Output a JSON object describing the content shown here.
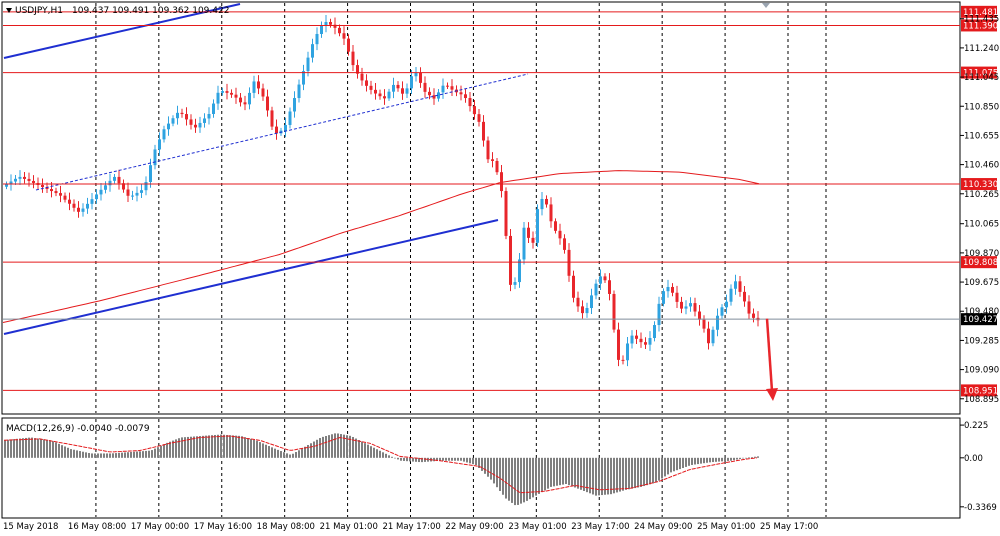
{
  "header": {
    "symbol": "USDJPY,H1",
    "quote": "109.437 109.491 109.362 109.422",
    "macd_label": "MACD(12,26,9) -0.0040 -0.0079"
  },
  "colors": {
    "bull": "#2fa3e0",
    "bear": "#e8262b",
    "level_line": "#e41a1c",
    "trend_line": "#1f2fd1",
    "ma_line": "#e41a1c",
    "current_price_line": "#7f8c9a",
    "macd_hist": "#7f7f7f",
    "macd_signal": "#e41a1c"
  },
  "chart_data": {
    "type": "candlestick",
    "title": "USDJPY,H1",
    "price_range": [
      108.82,
      111.52
    ],
    "price_ticks": [
      "111.435",
      "111.240",
      "111.045",
      "110.850",
      "110.655",
      "110.460",
      "110.265",
      "110.065",
      "109.870",
      "109.675",
      "109.480",
      "109.285",
      "109.090",
      "108.895"
    ],
    "level_labels": [
      "111.481",
      "111.390",
      "111.075",
      "110.330",
      "109.808",
      "108.951"
    ],
    "current_price_label": "109.427",
    "time_labels": [
      "15 May 2018",
      "16 May 08:00",
      "17 May 00:00",
      "17 May 16:00",
      "18 May 08:00",
      "21 May 01:00",
      "21 May 17:00",
      "22 May 09:00",
      "23 May 01:00",
      "23 May 17:00",
      "24 May 09:00",
      "25 May 01:00",
      "25 May 17:00"
    ],
    "moving_average_points": [
      [
        0,
        109.4
      ],
      [
        100,
        109.55
      ],
      [
        200,
        109.72
      ],
      [
        280,
        109.86
      ],
      [
        340,
        110.0
      ],
      [
        400,
        110.12
      ],
      [
        460,
        110.26
      ],
      [
        500,
        110.34
      ],
      [
        560,
        110.4
      ],
      [
        620,
        110.42
      ],
      [
        680,
        110.41
      ],
      [
        740,
        110.36
      ],
      [
        760,
        110.33
      ]
    ],
    "price_path": [
      [
        0,
        110.3
      ],
      [
        20,
        110.38
      ],
      [
        40,
        110.32
      ],
      [
        60,
        110.26
      ],
      [
        80,
        110.14
      ],
      [
        100,
        110.28
      ],
      [
        115,
        110.38
      ],
      [
        130,
        110.24
      ],
      [
        145,
        110.3
      ],
      [
        155,
        110.55
      ],
      [
        165,
        110.7
      ],
      [
        180,
        110.82
      ],
      [
        195,
        110.7
      ],
      [
        210,
        110.8
      ],
      [
        220,
        110.96
      ],
      [
        235,
        110.92
      ],
      [
        245,
        110.85
      ],
      [
        255,
        111.02
      ],
      [
        265,
        110.9
      ],
      [
        275,
        110.66
      ],
      [
        285,
        110.7
      ],
      [
        295,
        110.9
      ],
      [
        305,
        111.1
      ],
      [
        315,
        111.3
      ],
      [
        325,
        111.42
      ],
      [
        335,
        111.38
      ],
      [
        345,
        111.3
      ],
      [
        355,
        111.1
      ],
      [
        365,
        111.0
      ],
      [
        375,
        110.94
      ],
      [
        385,
        110.9
      ],
      [
        395,
        111.0
      ],
      [
        405,
        110.92
      ],
      [
        415,
        111.1
      ],
      [
        425,
        110.95
      ],
      [
        435,
        110.9
      ],
      [
        445,
        111.0
      ],
      [
        455,
        110.95
      ],
      [
        465,
        110.92
      ],
      [
        475,
        110.8
      ],
      [
        482,
        110.72
      ],
      [
        487,
        110.5
      ],
      [
        495,
        110.48
      ],
      [
        502,
        110.3
      ],
      [
        508,
        109.9
      ],
      [
        512,
        109.6
      ],
      [
        518,
        109.72
      ],
      [
        525,
        110.05
      ],
      [
        533,
        109.9
      ],
      [
        540,
        110.25
      ],
      [
        547,
        110.2
      ],
      [
        553,
        110.05
      ],
      [
        560,
        109.98
      ],
      [
        567,
        109.86
      ],
      [
        572,
        109.6
      ],
      [
        578,
        109.52
      ],
      [
        585,
        109.45
      ],
      [
        593,
        109.6
      ],
      [
        600,
        109.72
      ],
      [
        607,
        109.68
      ],
      [
        612,
        109.55
      ],
      [
        617,
        109.2
      ],
      [
        622,
        109.1
      ],
      [
        627,
        109.25
      ],
      [
        633,
        109.32
      ],
      [
        640,
        109.28
      ],
      [
        648,
        109.25
      ],
      [
        655,
        109.38
      ],
      [
        662,
        109.6
      ],
      [
        670,
        109.65
      ],
      [
        677,
        109.55
      ],
      [
        684,
        109.48
      ],
      [
        690,
        109.55
      ],
      [
        698,
        109.45
      ],
      [
        704,
        109.38
      ],
      [
        710,
        109.25
      ],
      [
        716,
        109.42
      ],
      [
        722,
        109.5
      ],
      [
        728,
        109.55
      ],
      [
        735,
        109.7
      ],
      [
        740,
        109.62
      ],
      [
        745,
        109.55
      ],
      [
        750,
        109.46
      ],
      [
        757,
        109.42
      ]
    ],
    "forecast_arrow": {
      "from": [
        767,
        109.43
      ],
      "to": [
        772,
        108.88
      ]
    },
    "macd_range": [
      -0.4,
      0.26
    ],
    "macd_ticks": [
      "0.225",
      "0.00",
      "-0.3369"
    ],
    "macd_histogram_points": [
      [
        0,
        0.12
      ],
      [
        30,
        0.14
      ],
      [
        50,
        0.12
      ],
      [
        70,
        0.06
      ],
      [
        90,
        0.03
      ],
      [
        110,
        0.03
      ],
      [
        130,
        0.04
      ],
      [
        150,
        0.05
      ],
      [
        165,
        0.1
      ],
      [
        180,
        0.14
      ],
      [
        200,
        0.15
      ],
      [
        220,
        0.16
      ],
      [
        240,
        0.15
      ],
      [
        255,
        0.12
      ],
      [
        275,
        0.06
      ],
      [
        290,
        0.02
      ],
      [
        305,
        0.08
      ],
      [
        320,
        0.14
      ],
      [
        335,
        0.17
      ],
      [
        350,
        0.15
      ],
      [
        370,
        0.08
      ],
      [
        390,
        0.01
      ],
      [
        400,
        -0.02
      ],
      [
        420,
        -0.03
      ],
      [
        440,
        -0.02
      ],
      [
        460,
        -0.02
      ],
      [
        475,
        -0.05
      ],
      [
        490,
        -0.15
      ],
      [
        505,
        -0.28
      ],
      [
        515,
        -0.33
      ],
      [
        525,
        -0.3
      ],
      [
        535,
        -0.26
      ],
      [
        550,
        -0.2
      ],
      [
        565,
        -0.18
      ],
      [
        580,
        -0.22
      ],
      [
        595,
        -0.26
      ],
      [
        610,
        -0.25
      ],
      [
        625,
        -0.22
      ],
      [
        640,
        -0.2
      ],
      [
        655,
        -0.17
      ],
      [
        670,
        -0.1
      ],
      [
        690,
        -0.05
      ],
      [
        710,
        -0.03
      ],
      [
        730,
        -0.02
      ],
      [
        745,
        0.0
      ],
      [
        757,
        0.01
      ]
    ],
    "macd_signal_points": [
      [
        0,
        0.12
      ],
      [
        40,
        0.13
      ],
      [
        80,
        0.08
      ],
      [
        110,
        0.04
      ],
      [
        140,
        0.05
      ],
      [
        170,
        0.1
      ],
      [
        200,
        0.14
      ],
      [
        230,
        0.15
      ],
      [
        260,
        0.12
      ],
      [
        290,
        0.05
      ],
      [
        315,
        0.08
      ],
      [
        340,
        0.14
      ],
      [
        370,
        0.1
      ],
      [
        400,
        0.01
      ],
      [
        440,
        -0.02
      ],
      [
        480,
        -0.06
      ],
      [
        500,
        -0.14
      ],
      [
        520,
        -0.24
      ],
      [
        545,
        -0.23
      ],
      [
        575,
        -0.19
      ],
      [
        600,
        -0.22
      ],
      [
        630,
        -0.21
      ],
      [
        660,
        -0.16
      ],
      [
        690,
        -0.08
      ],
      [
        720,
        -0.04
      ],
      [
        745,
        -0.01
      ],
      [
        757,
        0.0
      ]
    ]
  }
}
